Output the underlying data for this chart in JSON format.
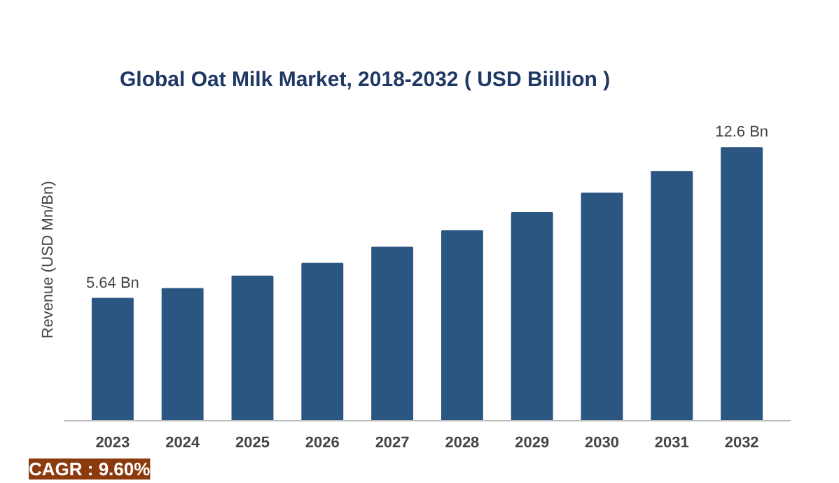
{
  "chart_data": {
    "type": "bar",
    "title": "Global Oat Milk Market, 2018-2032 ( USD Biillion )",
    "ylabel": "Revenue (USD Mn/Bn)",
    "categories": [
      "2023",
      "2024",
      "2025",
      "2026",
      "2027",
      "2028",
      "2029",
      "2030",
      "2031",
      "2032"
    ],
    "values": [
      5.64,
      6.09,
      6.67,
      7.26,
      8.0,
      8.76,
      9.6,
      10.5,
      11.5,
      12.6
    ],
    "value_labels": [
      "5.64 Bn",
      null,
      null,
      null,
      null,
      null,
      null,
      null,
      null,
      "12.6 Bn"
    ],
    "color": "#2b5681",
    "grid": false,
    "annotations": [
      "CAGR : 9.60%"
    ]
  }
}
